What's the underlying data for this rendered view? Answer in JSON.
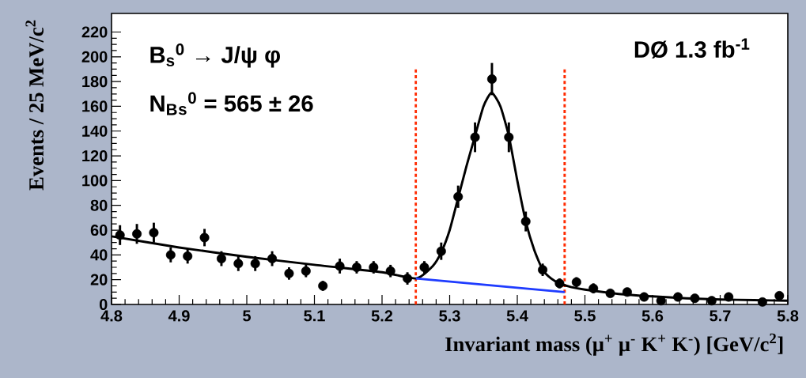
{
  "chart_data": {
    "type": "scatter",
    "xlabel": "Invariant mass (μ$^{+}$ μ$^{-}$ K$^{+}$ K$^{-}$)  [GeV/c$^{2}$]",
    "ylabel": "Events / 25 MeV/c$^{2}$",
    "annotations": [
      "B$_{s}$$^{0}$ → J/ψ φ",
      "N$_{B}$$_{s}$$^{0}$ = 565 ± 26",
      "DØ 1.3 fb$^{-1}$"
    ],
    "marker": "circle",
    "xlim": [
      4.8,
      5.8
    ],
    "ylim": [
      0,
      235
    ],
    "xticks": [
      4.8,
      4.9,
      5,
      5.1,
      5.2,
      5.3,
      5.4,
      5.5,
      5.6,
      5.7,
      5.8
    ],
    "yticks": [
      0,
      20,
      40,
      60,
      80,
      100,
      120,
      140,
      160,
      180,
      200,
      220
    ],
    "series": [
      {
        "type": "scatter",
        "color": "#000000",
        "x": [
          4.8125,
          4.8375,
          4.8625,
          4.8875,
          4.9125,
          4.9375,
          4.9625,
          4.9875,
          5.0125,
          5.0375,
          5.0625,
          5.0875,
          5.1125,
          5.1375,
          5.1625,
          5.1875,
          5.2125,
          5.2375,
          5.2625,
          5.2875,
          5.3125,
          5.3375,
          5.3625,
          5.3875,
          5.4125,
          5.4375,
          5.4625,
          5.4875,
          5.5125,
          5.5375,
          5.5625,
          5.5875,
          5.6125,
          5.6375,
          5.6625,
          5.6875,
          5.7125,
          5.7375,
          5.7625,
          5.7875
        ],
        "values": [
          56,
          57,
          58,
          40,
          39,
          54,
          37,
          33,
          33,
          37,
          25,
          27,
          15,
          31,
          30,
          30,
          27,
          21,
          30,
          43,
          87,
          135,
          182,
          135,
          67,
          28,
          17,
          18,
          13,
          9,
          10,
          6,
          3,
          6,
          5,
          3,
          6,
          null,
          2,
          7
        ],
        "errors": [
          8,
          8,
          8,
          6,
          6,
          7,
          6,
          6,
          6,
          6,
          5,
          5,
          4,
          6,
          5,
          5,
          5,
          5,
          5,
          7,
          9,
          12,
          13,
          12,
          8,
          5,
          4,
          4,
          4,
          3,
          3,
          2,
          2,
          2,
          2,
          2,
          2,
          null,
          1,
          3
        ]
      },
      {
        "type": "line",
        "color": "#000000",
        "marker": "none",
        "x": [
          4.8,
          4.9,
          5.0,
          5.1,
          5.2,
          5.25,
          5.275,
          5.2875,
          5.3,
          5.3125,
          5.325,
          5.3375,
          5.35,
          5.362,
          5.375,
          5.3875,
          5.4,
          5.4125,
          5.425,
          5.4375,
          5.45,
          5.4625,
          5.48,
          5.5,
          5.55,
          5.6,
          5.65,
          5.7,
          5.75,
          5.8
        ],
        "values": [
          55,
          46,
          38.5,
          32,
          26,
          21,
          31,
          42,
          60,
          86,
          112,
          136,
          160,
          171,
          160,
          136,
          100,
          67,
          44,
          28,
          21,
          17,
          14,
          12,
          8.5,
          6.5,
          5,
          4,
          3.5,
          3
        ]
      },
      {
        "type": "line",
        "color": "#1f3cff",
        "marker": "none",
        "x": [
          5.25,
          5.47
        ],
        "values": [
          21,
          10
        ]
      }
    ],
    "ref_lines": [
      {
        "axis": "x",
        "value": 5.25,
        "color": "#ff2a00",
        "line_style": "dotted"
      },
      {
        "axis": "x",
        "value": 5.47,
        "color": "#ff2a00",
        "line_style": "dotted"
      }
    ]
  }
}
